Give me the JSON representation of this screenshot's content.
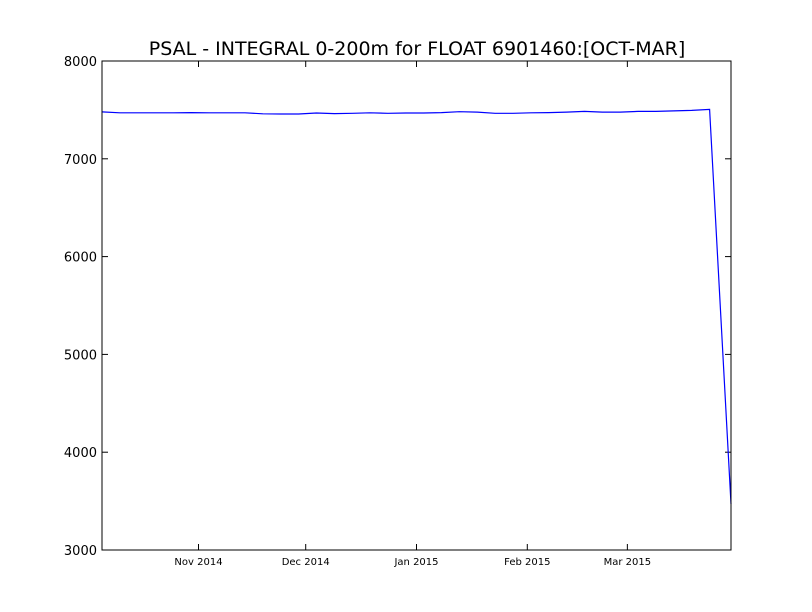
{
  "chart_data": {
    "type": "line",
    "title": "PSAL - INTEGRAL 0-200m for FLOAT 6901460:[OCT-MAR]",
    "xlabel": "",
    "ylabel": "",
    "xlim": [
      "2014-10-05",
      "2015-03-30"
    ],
    "ylim": [
      3000,
      8000
    ],
    "grid": false,
    "x_ticks": [
      {
        "date": "2014-11-01",
        "label": "Nov 2014"
      },
      {
        "date": "2014-12-01",
        "label": "Dec 2014"
      },
      {
        "date": "2015-01-01",
        "label": "Jan 2015"
      },
      {
        "date": "2015-02-01",
        "label": "Feb 2015"
      },
      {
        "date": "2015-03-01",
        "label": "Mar 2015"
      }
    ],
    "y_ticks": [
      3000,
      4000,
      5000,
      6000,
      7000,
      8000
    ],
    "series": [
      {
        "color": "#0000ff",
        "x": [
          "2014-10-05",
          "2014-10-10",
          "2014-10-15",
          "2014-10-20",
          "2014-10-25",
          "2014-10-30",
          "2014-11-04",
          "2014-11-09",
          "2014-11-14",
          "2014-11-19",
          "2014-11-24",
          "2014-11-29",
          "2014-12-04",
          "2014-12-09",
          "2014-12-14",
          "2014-12-19",
          "2014-12-24",
          "2014-12-29",
          "2015-01-03",
          "2015-01-08",
          "2015-01-13",
          "2015-01-18",
          "2015-01-23",
          "2015-01-28",
          "2015-02-02",
          "2015-02-07",
          "2015-02-12",
          "2015-02-17",
          "2015-02-22",
          "2015-02-27",
          "2015-03-04",
          "2015-03-09",
          "2015-03-14",
          "2015-03-19",
          "2015-03-24",
          "2015-03-30"
        ],
        "y": [
          7480,
          7470,
          7470,
          7470,
          7470,
          7472,
          7470,
          7470,
          7470,
          7460,
          7458,
          7458,
          7468,
          7462,
          7465,
          7470,
          7465,
          7468,
          7468,
          7472,
          7482,
          7478,
          7465,
          7465,
          7470,
          7472,
          7478,
          7485,
          7478,
          7478,
          7485,
          7485,
          7490,
          7495,
          7505,
          3470
        ]
      }
    ]
  }
}
